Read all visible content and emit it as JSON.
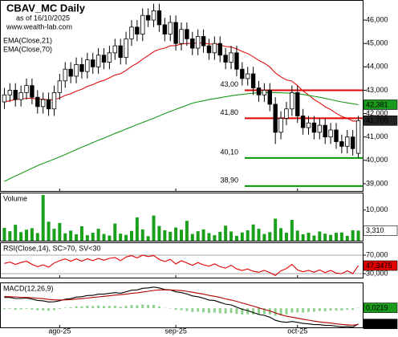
{
  "chart_data": [
    {
      "type": "candlestick",
      "title": "CBAV_MC Daily",
      "subtitle": "as of 16/10/2025",
      "source": "www.wealth-lab.com",
      "categories": [
        null,
        null,
        null,
        null,
        null,
        null,
        null,
        null,
        null,
        null,
        "ago-25",
        null,
        null,
        null,
        null,
        null,
        null,
        null,
        null,
        null,
        null,
        null,
        null,
        null,
        null,
        null,
        null,
        null,
        null,
        null,
        null,
        "sep-25",
        null,
        null,
        null,
        null,
        null,
        null,
        null,
        null,
        null,
        null,
        null,
        null,
        null,
        null,
        null,
        null,
        null,
        null,
        null,
        null,
        null,
        "oct-25",
        null,
        null,
        null,
        null,
        null,
        null,
        null,
        null,
        null,
        null,
        null
      ],
      "open": [
        42.5,
        42.8,
        43.0,
        42.6,
        42.9,
        43.2,
        42.7,
        42.3,
        42.6,
        42.2,
        42.9,
        43.4,
        43.9,
        43.6,
        44.1,
        43.8,
        44.3,
        44.0,
        44.5,
        44.2,
        44.6,
        44.9,
        44.4,
        45.2,
        45.7,
        45.4,
        46.2,
        46.0,
        46.4,
        45.8,
        45.4,
        45.9,
        45.0,
        45.6,
        45.2,
        44.8,
        45.3,
        44.9,
        44.6,
        45.0,
        44.5,
        44.2,
        44.6,
        43.9,
        43.5,
        43.7,
        43.1,
        42.8,
        43.0,
        42.4,
        41.2,
        41.8,
        42.2,
        42.9,
        41.9,
        41.4,
        41.6,
        41.2,
        41.5,
        41.0,
        41.3,
        40.8,
        40.6,
        41.0,
        40.3
      ],
      "high": [
        43.1,
        43.3,
        43.3,
        43.2,
        43.5,
        43.5,
        43.0,
        42.9,
        42.9,
        43.2,
        43.7,
        44.2,
        44.2,
        44.4,
        44.4,
        44.6,
        44.6,
        44.8,
        44.8,
        44.9,
        45.2,
        45.2,
        45.5,
        46.0,
        46.0,
        46.5,
        46.5,
        46.7,
        46.7,
        46.1,
        46.2,
        46.2,
        45.9,
        45.9,
        45.5,
        45.6,
        45.6,
        45.2,
        45.3,
        45.3,
        44.8,
        44.9,
        44.9,
        44.2,
        44.0,
        44.0,
        43.4,
        43.3,
        43.3,
        42.7,
        42.1,
        42.5,
        43.2,
        43.2,
        42.2,
        41.9,
        41.9,
        41.8,
        41.8,
        41.6,
        41.6,
        41.1,
        41.3,
        41.3,
        41.9
      ],
      "low": [
        42.2,
        42.5,
        42.3,
        42.3,
        42.6,
        42.4,
        42.0,
        42.0,
        41.9,
        41.9,
        42.6,
        43.1,
        43.3,
        43.3,
        43.5,
        43.5,
        43.7,
        43.7,
        43.9,
        43.9,
        44.3,
        44.1,
        44.1,
        44.9,
        45.1,
        45.1,
        45.7,
        45.7,
        45.5,
        45.1,
        45.1,
        44.7,
        44.7,
        44.9,
        44.5,
        44.5,
        44.6,
        44.3,
        44.3,
        44.2,
        43.9,
        43.9,
        43.6,
        43.2,
        43.2,
        42.8,
        42.5,
        42.5,
        42.1,
        40.7,
        40.9,
        41.5,
        41.9,
        41.6,
        41.1,
        41.1,
        40.9,
        40.9,
        40.7,
        40.7,
        40.5,
        40.3,
        40.3,
        40.2,
        40.1
      ],
      "close": [
        42.8,
        43.0,
        42.6,
        42.9,
        43.2,
        42.7,
        42.3,
        42.6,
        42.2,
        42.9,
        43.4,
        43.9,
        43.6,
        44.1,
        43.8,
        44.3,
        44.0,
        44.5,
        44.2,
        44.6,
        44.9,
        44.4,
        45.2,
        45.7,
        45.4,
        46.2,
        46.0,
        46.4,
        45.8,
        45.4,
        45.9,
        45.0,
        45.6,
        45.2,
        44.8,
        45.3,
        44.9,
        44.6,
        45.0,
        44.5,
        44.2,
        44.6,
        43.9,
        43.5,
        43.7,
        43.1,
        42.8,
        43.0,
        42.4,
        41.2,
        41.8,
        42.2,
        42.9,
        41.9,
        41.4,
        41.6,
        41.2,
        41.5,
        41.0,
        41.3,
        40.8,
        40.6,
        41.0,
        40.5,
        41.7
      ],
      "last_label": "41,700",
      "up_color": "#ffffff",
      "down_color": "#000000",
      "last_color": "#222222",
      "series": [
        {
          "name": "EMA(Close,21)",
          "color": "#e01010",
          "values": [
            42.5,
            42.55,
            42.6,
            42.62,
            42.65,
            42.65,
            42.62,
            42.62,
            42.58,
            42.6,
            42.67,
            42.78,
            42.85,
            42.96,
            43.04,
            43.16,
            43.24,
            43.35,
            43.42,
            43.53,
            43.65,
            43.71,
            43.85,
            44.02,
            44.15,
            44.33,
            44.48,
            44.65,
            44.75,
            44.8,
            44.9,
            44.91,
            44.98,
            45.0,
            45.0,
            45.03,
            45.02,
            44.98,
            44.98,
            44.94,
            44.87,
            44.85,
            44.77,
            44.66,
            44.57,
            44.43,
            44.28,
            44.16,
            43.99,
            43.74,
            43.57,
            43.44,
            43.39,
            43.2,
            42.97,
            42.8,
            42.6,
            42.46,
            42.29,
            42.17,
            42.01,
            41.88,
            41.8,
            41.68,
            41.68
          ]
        },
        {
          "name": "EMA(Close,70)",
          "color": "#1a9a1a",
          "last_label": "42,381",
          "values": [
            39.1,
            39.22,
            39.33,
            39.44,
            39.55,
            39.66,
            39.77,
            39.87,
            39.96,
            40.05,
            40.15,
            40.25,
            40.36,
            40.46,
            40.56,
            40.66,
            40.76,
            40.86,
            40.95,
            41.05,
            41.15,
            41.24,
            41.34,
            41.43,
            41.53,
            41.62,
            41.71,
            41.8,
            41.9,
            42.0,
            42.09,
            42.18,
            42.27,
            42.36,
            42.45,
            42.5,
            42.55,
            42.6,
            42.64,
            42.68,
            42.72,
            42.76,
            42.8,
            42.82,
            42.85,
            42.87,
            42.89,
            42.9,
            42.9,
            42.9,
            42.89,
            42.88,
            42.87,
            42.85,
            42.82,
            42.78,
            42.74,
            42.7,
            42.65,
            42.6,
            42.55,
            42.5,
            42.46,
            42.42,
            42.381
          ]
        }
      ],
      "levels": [
        {
          "value": 43.0,
          "label": "43,00",
          "color": "#e00000"
        },
        {
          "value": 41.8,
          "label": "41,80",
          "color": "#e00000"
        },
        {
          "value": 40.1,
          "label": "40,10",
          "color": "#009900"
        },
        {
          "value": 38.9,
          "label": "38,90",
          "color": "#009900"
        }
      ],
      "ylim": [
        38.69,
        46.86
      ],
      "yticks": [
        {
          "value": 46,
          "label": "46,000"
        },
        {
          "value": 45,
          "label": "45,000"
        },
        {
          "value": 44,
          "label": "44,000"
        },
        {
          "value": 43,
          "label": "43,000"
        },
        {
          "value": 42,
          "label": "42,000"
        },
        {
          "value": 41,
          "label": "41,000"
        },
        {
          "value": 40,
          "label": "40,000"
        },
        {
          "value": 39,
          "label": "39,000"
        }
      ],
      "grid": false
    },
    {
      "type": "bar",
      "title": "Volume",
      "color": "#1aa01a",
      "last_label": "3,310",
      "last_color": "#ffffff",
      "values": [
        4200,
        3100,
        5200,
        2800,
        3600,
        4100,
        2500,
        14900,
        6200,
        3900,
        5800,
        2400,
        3300,
        2100,
        4700,
        1800,
        2600,
        3900,
        2200,
        1700,
        5600,
        2300,
        1900,
        3200,
        7600,
        3700,
        1500,
        8200,
        4800,
        3400,
        2900,
        4300,
        3600,
        6500,
        2200,
        3100,
        3700,
        2500,
        1800,
        2900,
        4900,
        3000,
        1600,
        2700,
        3400,
        5300,
        3900,
        2200,
        2800,
        7200,
        4100,
        2600,
        6800,
        3300,
        2100,
        2600,
        1700,
        3000,
        2300,
        1900,
        2600,
        2700,
        1600,
        3400,
        3310
      ],
      "ylim": [
        0,
        15700
      ],
      "yticks": [
        {
          "value": 10000,
          "label": "10,000"
        }
      ],
      "grid": false
    },
    {
      "type": "line",
      "title": "RSI(Close,14), SC>70, SV<30",
      "series": [
        {
          "color": "#e00000",
          "last_label": "47,3475",
          "values": [
            52,
            55,
            50,
            54,
            57,
            50,
            45,
            49,
            44,
            53,
            58,
            62,
            57,
            62,
            57,
            62,
            58,
            63,
            59,
            63,
            65,
            58,
            66,
            69,
            64,
            70,
            67,
            69,
            61,
            56,
            61,
            51,
            58,
            53,
            48,
            54,
            49,
            46,
            51,
            45,
            42,
            48,
            40,
            37,
            40,
            35,
            33,
            37,
            32,
            26,
            36,
            41,
            50,
            38,
            34,
            37,
            33,
            38,
            32,
            37,
            31,
            30,
            36,
            30,
            47.3475
          ]
        }
      ],
      "ylim": [
        21.3,
        97.8
      ],
      "yticks": [
        {
          "value": 70,
          "label": "70,000"
        },
        {
          "value": 30,
          "label": "30,000"
        }
      ],
      "grid": true
    },
    {
      "type": "line",
      "title": "MACD(12,26,9)",
      "series": [
        {
          "color": "#8fd08f",
          "style": "bar",
          "last_label": "0,0219",
          "last_color": "#1a9a1a",
          "values": [
            -0.05,
            -0.04,
            -0.08,
            -0.06,
            -0.03,
            -0.07,
            -0.11,
            -0.11,
            -0.13,
            -0.1,
            -0.04,
            0.03,
            0.05,
            0.1,
            0.1,
            0.13,
            0.11,
            0.14,
            0.11,
            0.12,
            0.13,
            0.08,
            0.12,
            0.16,
            0.15,
            0.19,
            0.17,
            0.17,
            0.1,
            0.02,
            0,
            -0.08,
            -0.1,
            -0.14,
            -0.19,
            -0.18,
            -0.21,
            -0.24,
            -0.22,
            -0.25,
            -0.27,
            -0.25,
            -0.29,
            -0.32,
            -0.31,
            -0.33,
            -0.34,
            -0.31,
            -0.32,
            -0.38,
            -0.36,
            -0.31,
            -0.22,
            -0.21,
            -0.22,
            -0.19,
            -0.18,
            -0.14,
            -0.15,
            -0.12,
            -0.12,
            -0.12,
            -0.08,
            -0.09,
            0.0219
          ]
        },
        {
          "color": "#000000",
          "last_label": "-0,8042",
          "values": [
            0.55,
            0.55,
            0.5,
            0.5,
            0.52,
            0.47,
            0.4,
            0.38,
            0.32,
            0.33,
            0.38,
            0.46,
            0.49,
            0.57,
            0.59,
            0.65,
            0.66,
            0.72,
            0.72,
            0.76,
            0.8,
            0.77,
            0.84,
            0.92,
            0.94,
            1.02,
            1.04,
            1.08,
            1.04,
            0.96,
            0.94,
            0.84,
            0.8,
            0.73,
            0.63,
            0.59,
            0.51,
            0.42,
            0.39,
            0.3,
            0.21,
            0.17,
            0.06,
            -0.05,
            -0.12,
            -0.22,
            -0.32,
            -0.37,
            -0.46,
            -0.62,
            -0.69,
            -0.72,
            -0.68,
            -0.72,
            -0.78,
            -0.8,
            -0.84,
            -0.84,
            -0.88,
            -0.88,
            -0.92,
            -0.95,
            -0.93,
            -0.96,
            -0.8042
          ]
        },
        {
          "color": "#b00000",
          "values": [
            0.6,
            0.59,
            0.58,
            0.56,
            0.55,
            0.54,
            0.51,
            0.49,
            0.45,
            0.43,
            0.42,
            0.43,
            0.44,
            0.47,
            0.49,
            0.52,
            0.55,
            0.58,
            0.61,
            0.64,
            0.67,
            0.69,
            0.72,
            0.76,
            0.79,
            0.83,
            0.87,
            0.91,
            0.94,
            0.94,
            0.94,
            0.92,
            0.9,
            0.87,
            0.82,
            0.77,
            0.72,
            0.66,
            0.61,
            0.55,
            0.48,
            0.42,
            0.35,
            0.27,
            0.19,
            0.11,
            0.02,
            -0.06,
            -0.14,
            -0.24,
            -0.33,
            -0.41,
            -0.46,
            -0.51,
            -0.56,
            -0.61,
            -0.66,
            -0.7,
            -0.73,
            -0.76,
            -0.8,
            -0.83,
            -0.85,
            -0.87,
            -0.83
          ]
        }
      ],
      "ylim": [
        -0.98,
        1.32
      ],
      "grid": false
    }
  ]
}
